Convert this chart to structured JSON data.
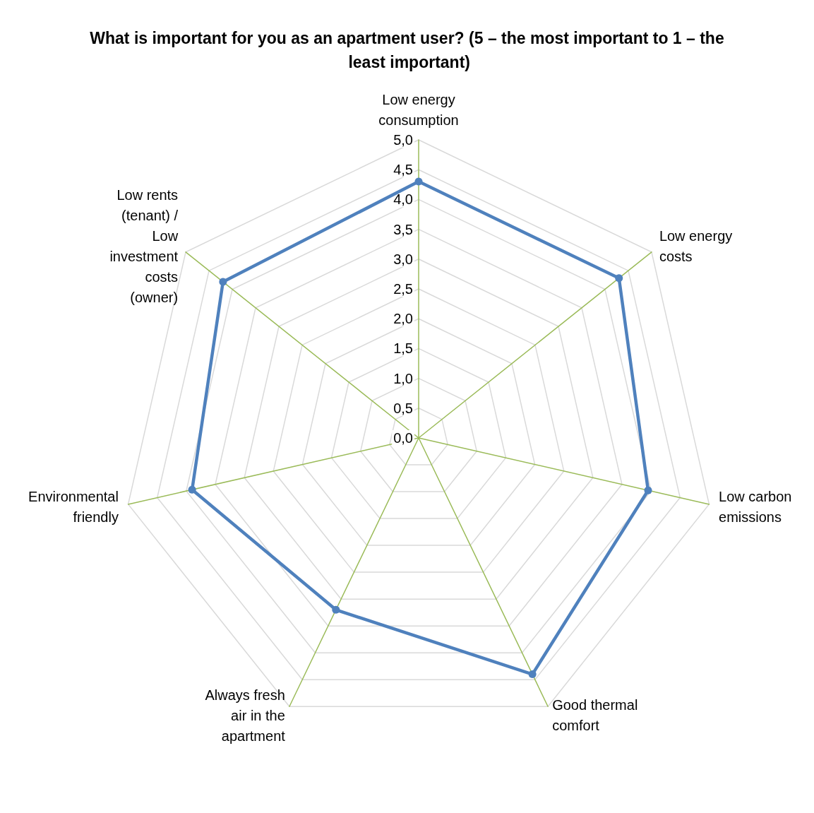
{
  "chart_data": {
    "type": "radar",
    "title": "What is important for you as an apartment user? (5 – the most important to 1 – the least important)",
    "categories": [
      "Low energy consumption",
      "Low energy costs",
      "Low carbon emissions",
      "Good thermal comfort",
      "Always fresh air in the apartment",
      "Environmental friendly",
      "Low rents (tenant) / Low investment costs (owner)"
    ],
    "series": [
      {
        "color": "#4f81bd",
        "values": [
          4.3,
          4.3,
          3.95,
          4.4,
          3.2,
          3.9,
          4.2
        ]
      }
    ],
    "ylim": [
      0,
      5
    ],
    "yticks": [
      {
        "value": 0,
        "label": "0,0"
      },
      {
        "value": 0.5,
        "label": "0,5"
      },
      {
        "value": 1,
        "label": "1,0"
      },
      {
        "value": 1.5,
        "label": "1,5"
      },
      {
        "value": 2,
        "label": "2,0"
      },
      {
        "value": 2.5,
        "label": "2,5"
      },
      {
        "value": 3,
        "label": "3,0"
      },
      {
        "value": 3.5,
        "label": "3,5"
      },
      {
        "value": 4,
        "label": "4,0"
      },
      {
        "value": 4.5,
        "label": "4,5"
      },
      {
        "value": 5,
        "label": "5,0"
      }
    ],
    "grid": true,
    "marker": "circle",
    "line_style": "solid"
  }
}
